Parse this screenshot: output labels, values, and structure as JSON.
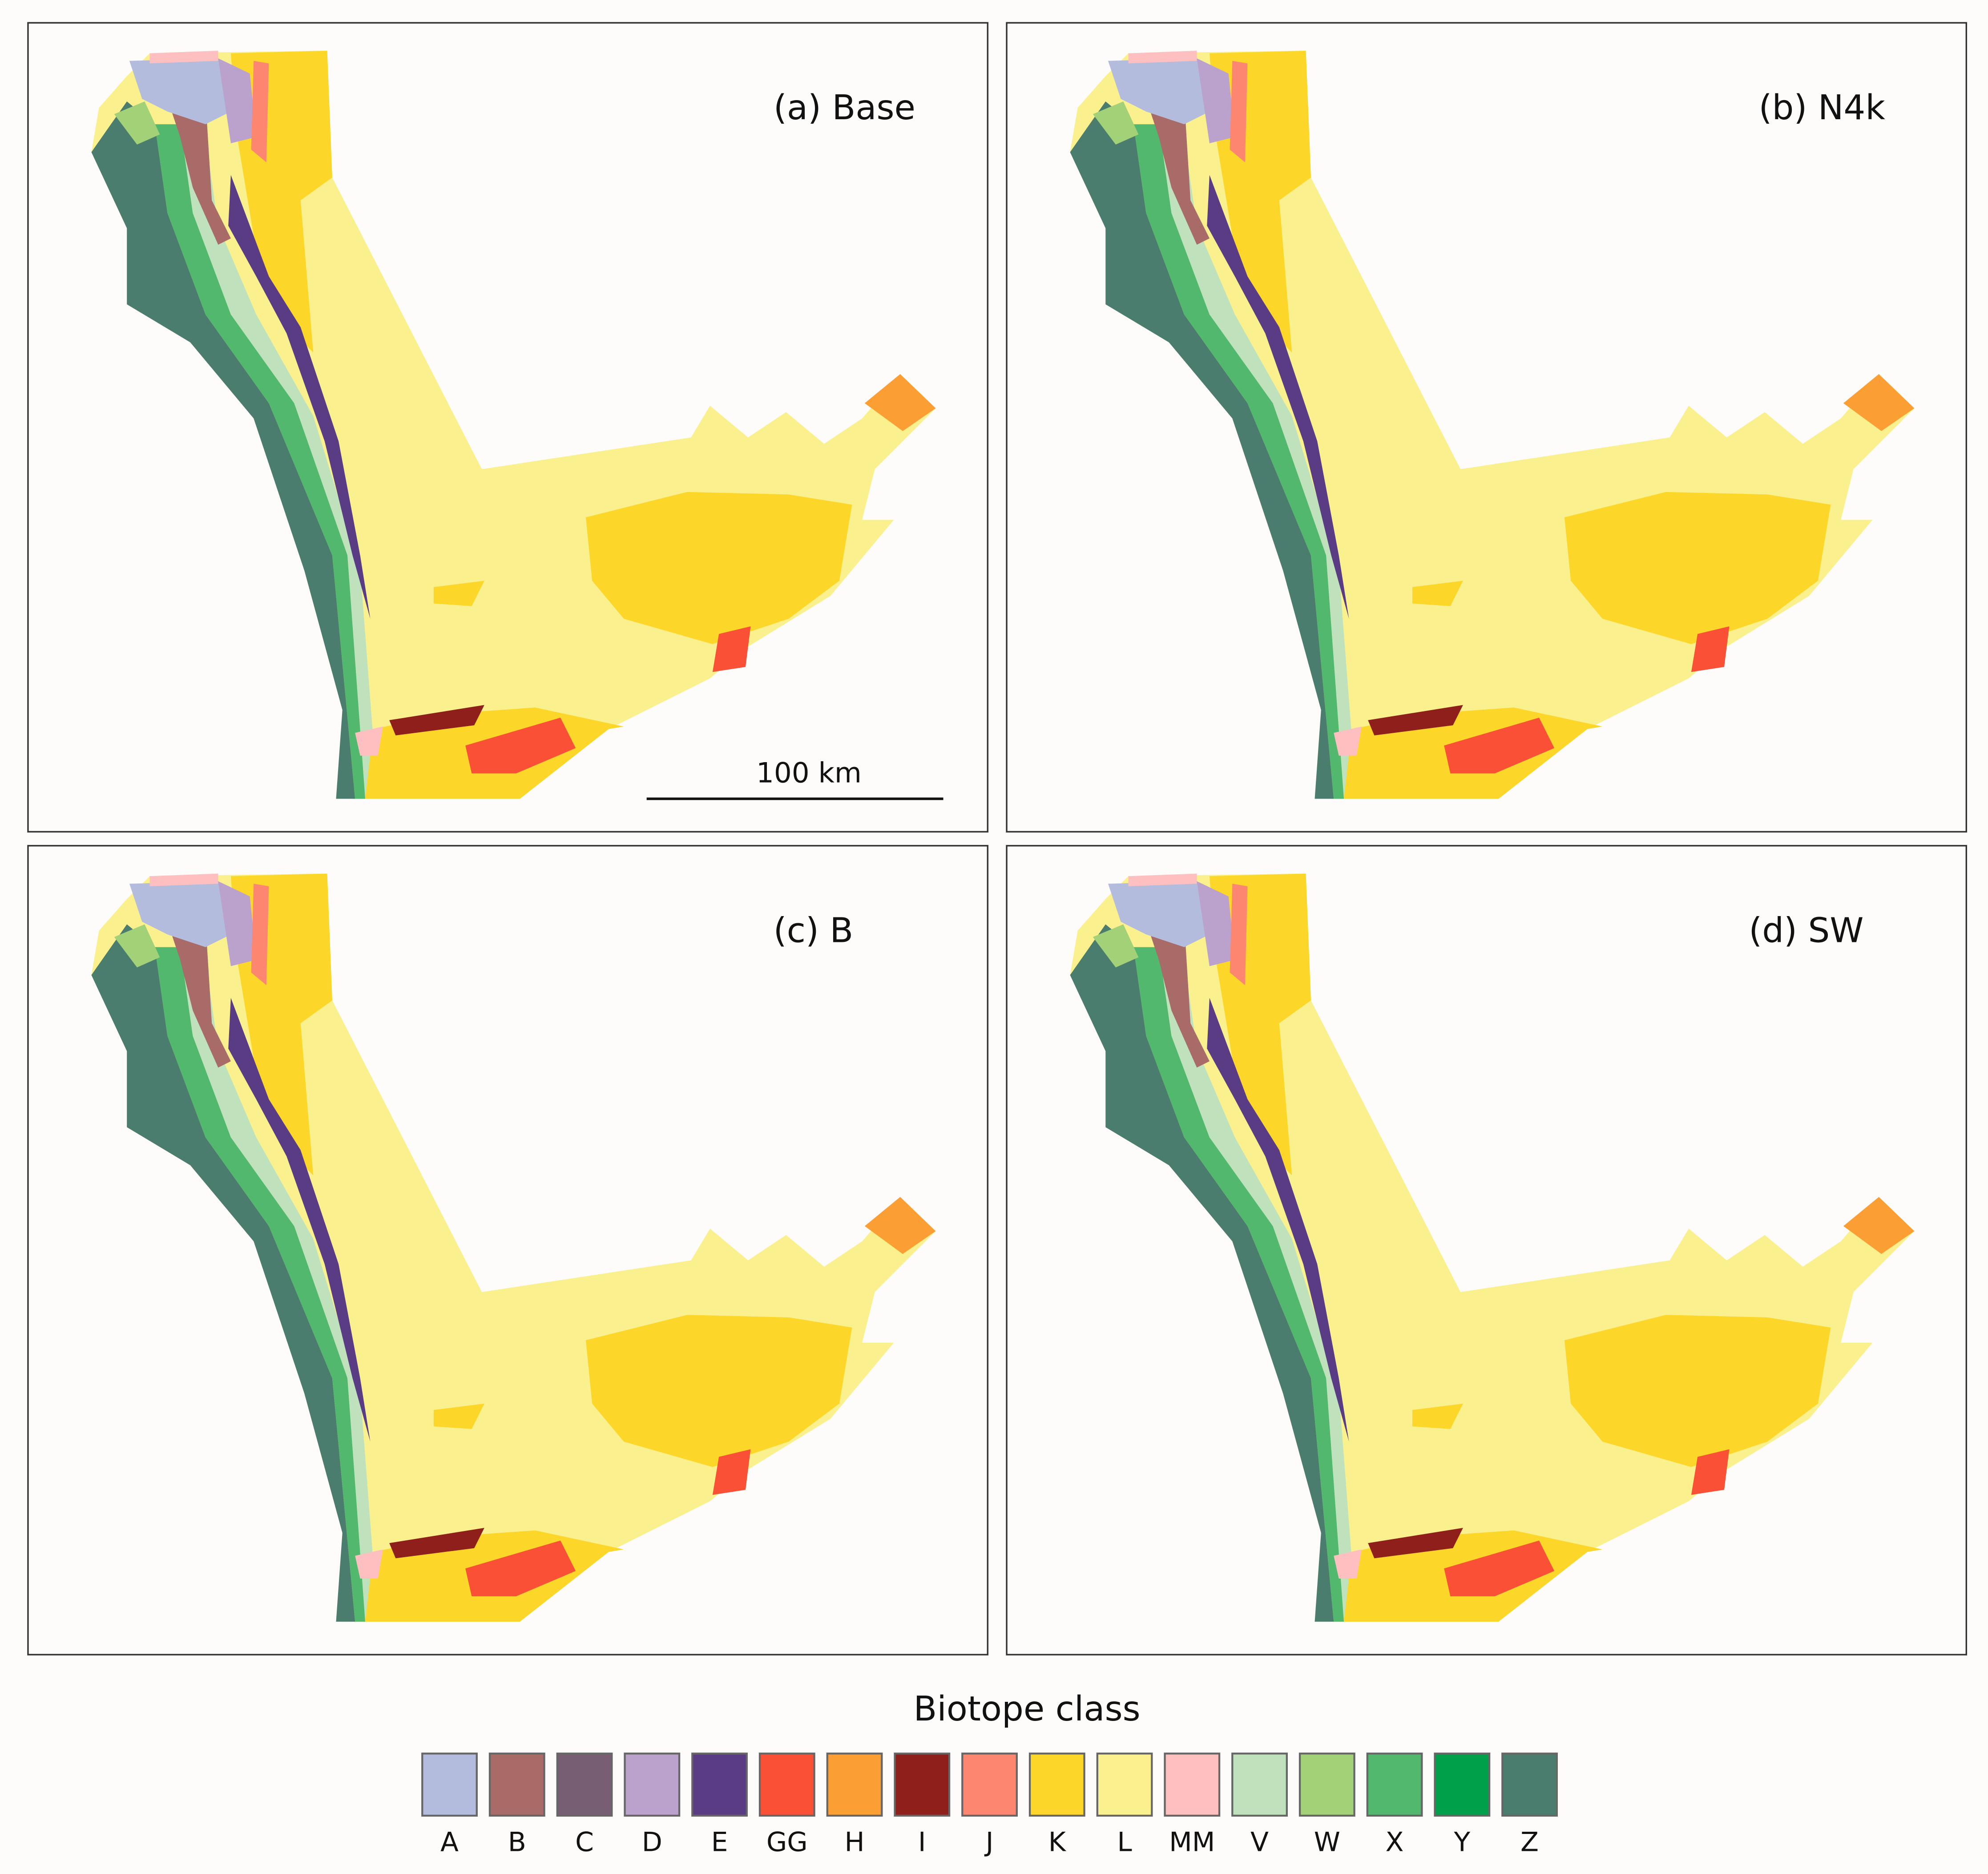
{
  "panels": [
    {
      "label": "(a) Base"
    },
    {
      "label": "(b) N4k"
    },
    {
      "label": "(c) B"
    },
    {
      "label": "(d) SW"
    }
  ],
  "scale_bar": {
    "label": "100 km"
  },
  "legend": {
    "title": "Biotope class",
    "items": [
      {
        "label": "A",
        "color": "#b3bcdc"
      },
      {
        "label": "B",
        "color": "#a86b68"
      },
      {
        "label": "C",
        "color": "#775e73"
      },
      {
        "label": "D",
        "color": "#bba2cc"
      },
      {
        "label": "E",
        "color": "#5a3c84"
      },
      {
        "label": "GG",
        "color": "#fa5036"
      },
      {
        "label": "H",
        "color": "#fb9f34"
      },
      {
        "label": "I",
        "color": "#8f1f1b"
      },
      {
        "label": "J",
        "color": "#fc8670"
      },
      {
        "label": "K",
        "color": "#fcd628"
      },
      {
        "label": "L",
        "color": "#faf18e"
      },
      {
        "label": "MM",
        "color": "#fdbfbf"
      },
      {
        "label": "V",
        "color": "#bfe2bd"
      },
      {
        "label": "W",
        "color": "#a3d177"
      },
      {
        "label": "X",
        "color": "#52b86e"
      },
      {
        "label": "Y",
        "color": "#00a04a"
      },
      {
        "label": "Z",
        "color": "#4b7d6f"
      }
    ]
  }
}
